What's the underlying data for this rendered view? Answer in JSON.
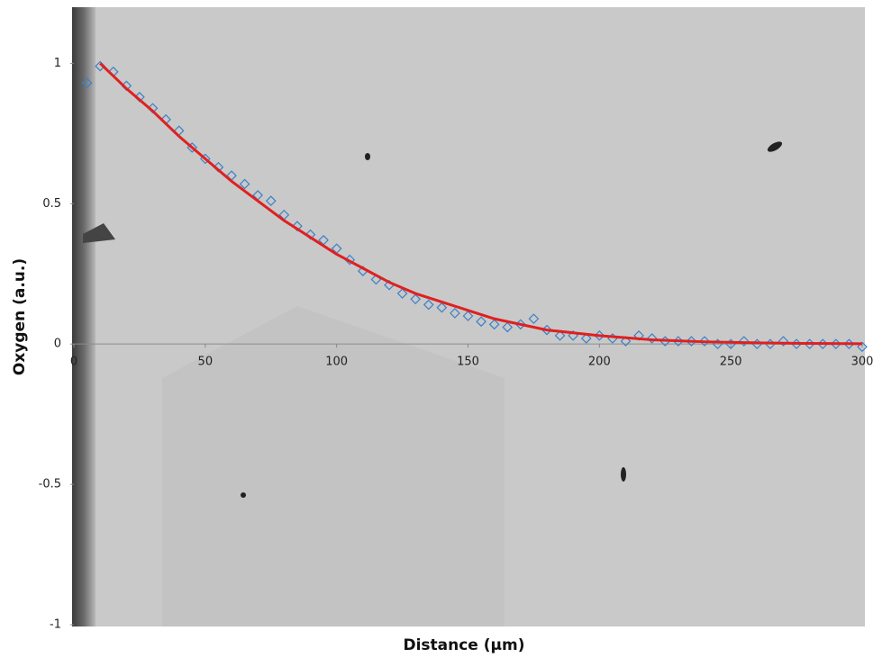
{
  "chart_data": {
    "type": "scatter",
    "x_label": "Distance (µm)",
    "y_label": "Oxygen (a.u.)",
    "xlim": [
      0,
      300
    ],
    "ylim": [
      -1,
      1.2
    ],
    "xticks": [
      0,
      50,
      100,
      150,
      200,
      250,
      300
    ],
    "yticks": [
      -1,
      -0.5,
      0,
      0.5,
      1
    ],
    "series": [
      {
        "type": "scatter",
        "color": "#3a80c8",
        "x": [
          5,
          10,
          15,
          20,
          25,
          30,
          35,
          40,
          45,
          50,
          55,
          60,
          65,
          70,
          75,
          80,
          85,
          90,
          95,
          100,
          105,
          110,
          115,
          120,
          125,
          130,
          135,
          140,
          145,
          150,
          155,
          160,
          165,
          170,
          175,
          180,
          185,
          190,
          195,
          200,
          205,
          210,
          215,
          220,
          225,
          230,
          235,
          240,
          245,
          250,
          255,
          260,
          265,
          270,
          275,
          280,
          285,
          290,
          295,
          300
        ],
        "values": [
          0.93,
          0.99,
          0.97,
          0.92,
          0.88,
          0.84,
          0.8,
          0.76,
          0.7,
          0.66,
          0.63,
          0.6,
          0.57,
          0.53,
          0.51,
          0.46,
          0.42,
          0.39,
          0.37,
          0.34,
          0.3,
          0.26,
          0.23,
          0.21,
          0.18,
          0.16,
          0.14,
          0.13,
          0.11,
          0.1,
          0.08,
          0.07,
          0.06,
          0.07,
          0.09,
          0.05,
          0.03,
          0.03,
          0.02,
          0.03,
          0.02,
          0.01,
          0.03,
          0.02,
          0.01,
          0.01,
          0.01,
          0.01,
          0,
          0,
          0.01,
          0,
          0,
          0.01,
          0,
          0,
          0,
          0,
          0,
          -0.01
        ]
      },
      {
        "type": "line",
        "color": "#e02020",
        "x": [
          10,
          20,
          30,
          40,
          50,
          60,
          70,
          80,
          90,
          100,
          110,
          120,
          130,
          140,
          150,
          160,
          170,
          180,
          190,
          200,
          220,
          240,
          260,
          280,
          300
        ],
        "values": [
          1,
          0.91,
          0.83,
          0.74,
          0.66,
          0.58,
          0.51,
          0.44,
          0.38,
          0.32,
          0.27,
          0.22,
          0.18,
          0.15,
          0.12,
          0.09,
          0.07,
          0.05,
          0.04,
          0.03,
          0.015,
          0.008,
          0.004,
          0.002,
          0.001
        ]
      }
    ]
  }
}
